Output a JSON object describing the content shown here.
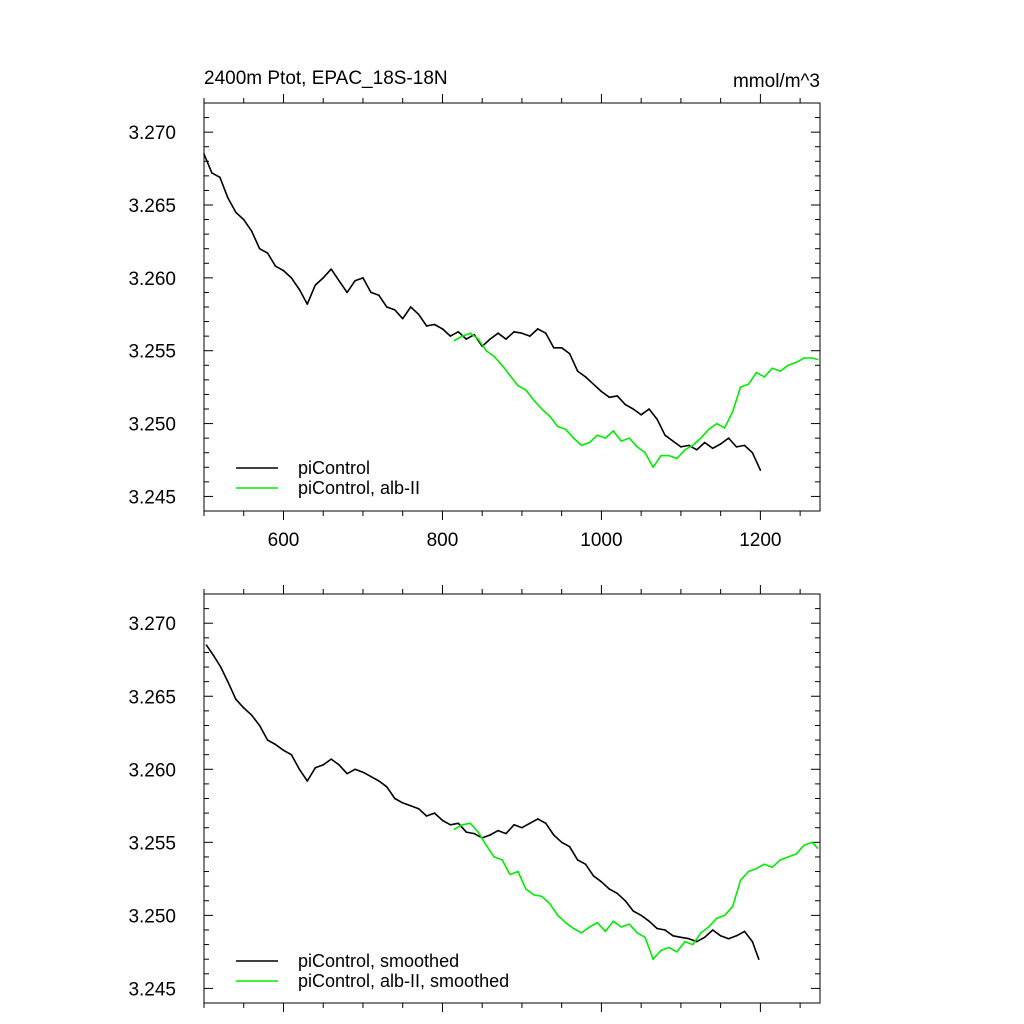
{
  "header": {
    "title": "2400m Ptot, EPAC_18S-18N",
    "units": "mmol/m^3"
  },
  "chart_data": [
    {
      "type": "line",
      "xlim": [
        500,
        1275
      ],
      "ylim": [
        3.244,
        3.272
      ],
      "xticks": [
        600,
        800,
        1000,
        1200
      ],
      "xtick_labels": [
        "600",
        "800",
        "1000",
        "1200"
      ],
      "yticks": [
        3.245,
        3.25,
        3.255,
        3.26,
        3.265,
        3.27
      ],
      "ytick_labels": [
        "3.245",
        "3.250",
        "3.255",
        "3.260",
        "3.265",
        "3.270"
      ],
      "legend_position": "bottom-left",
      "series": [
        {
          "name": "piControl",
          "color": "#000000",
          "x": [
            500,
            510,
            520,
            530,
            540,
            550,
            560,
            570,
            580,
            590,
            600,
            610,
            620,
            630,
            640,
            650,
            660,
            670,
            680,
            690,
            700,
            710,
            720,
            730,
            740,
            750,
            760,
            770,
            780,
            790,
            800,
            810,
            820,
            830,
            840,
            850,
            860,
            870,
            880,
            890,
            900,
            910,
            920,
            930,
            940,
            950,
            960,
            970,
            980,
            990,
            1000,
            1010,
            1020,
            1030,
            1040,
            1050,
            1060,
            1070,
            1080,
            1090,
            1100,
            1110,
            1120,
            1130,
            1140,
            1150,
            1160,
            1170,
            1180,
            1190,
            1200
          ],
          "y": [
            3.2685,
            3.2672,
            3.2669,
            3.2655,
            3.2645,
            3.264,
            3.2632,
            3.262,
            3.2617,
            3.2608,
            3.2605,
            3.26,
            3.2592,
            3.2582,
            3.2595,
            3.26,
            3.2606,
            3.2598,
            3.259,
            3.2598,
            3.26,
            3.259,
            3.2588,
            3.258,
            3.2578,
            3.2572,
            3.258,
            3.2575,
            3.2567,
            3.2568,
            3.2565,
            3.256,
            3.2563,
            3.2558,
            3.2561,
            3.2553,
            3.2558,
            3.2562,
            3.2558,
            3.2563,
            3.2562,
            3.256,
            3.2565,
            3.2562,
            3.2552,
            3.2552,
            3.2548,
            3.2536,
            3.2532,
            3.2527,
            3.2522,
            3.2518,
            3.2519,
            3.2513,
            3.251,
            3.2506,
            3.251,
            3.2503,
            3.2492,
            3.2488,
            3.2484,
            3.2485,
            3.2482,
            3.2487,
            3.2483,
            3.2486,
            3.249,
            3.2484,
            3.2485,
            3.248,
            3.2468
          ]
        },
        {
          "name": "piControl, alb-II",
          "color": "#00ee00",
          "x": [
            815,
            825,
            835,
            845,
            855,
            865,
            875,
            885,
            895,
            905,
            915,
            925,
            935,
            945,
            955,
            965,
            975,
            985,
            995,
            1005,
            1015,
            1025,
            1035,
            1045,
            1055,
            1065,
            1075,
            1085,
            1095,
            1105,
            1115,
            1125,
            1135,
            1145,
            1155,
            1165,
            1175,
            1185,
            1195,
            1205,
            1215,
            1225,
            1235,
            1245,
            1255,
            1265,
            1272
          ],
          "y": [
            3.2557,
            3.256,
            3.2562,
            3.2558,
            3.255,
            3.2546,
            3.254,
            3.2533,
            3.2526,
            3.2523,
            3.2516,
            3.251,
            3.2505,
            3.2498,
            3.2496,
            3.249,
            3.2485,
            3.2487,
            3.2492,
            3.249,
            3.2495,
            3.2488,
            3.249,
            3.2484,
            3.248,
            3.247,
            3.2478,
            3.2478,
            3.2476,
            3.2482,
            3.2485,
            3.249,
            3.2496,
            3.25,
            3.2497,
            3.2508,
            3.2525,
            3.2527,
            3.2535,
            3.2532,
            3.2538,
            3.2536,
            3.254,
            3.2542,
            3.2545,
            3.2545,
            3.2544
          ]
        }
      ]
    },
    {
      "type": "line",
      "xlim": [
        500,
        1275
      ],
      "ylim": [
        3.244,
        3.272
      ],
      "xticks": [
        600,
        800,
        1000,
        1200
      ],
      "yticks": [
        3.245,
        3.25,
        3.255,
        3.26,
        3.265,
        3.27
      ],
      "ytick_labels": [
        "3.245",
        "3.250",
        "3.255",
        "3.260",
        "3.265",
        "3.270"
      ],
      "legend_position": "bottom-left",
      "series": [
        {
          "name": "piControl, smoothed",
          "color": "#000000",
          "x": [
            503,
            512,
            521,
            530,
            540,
            550,
            560,
            570,
            580,
            590,
            600,
            610,
            620,
            630,
            640,
            650,
            660,
            670,
            680,
            690,
            700,
            710,
            720,
            730,
            740,
            750,
            760,
            770,
            780,
            790,
            800,
            810,
            820,
            830,
            840,
            850,
            860,
            870,
            880,
            890,
            900,
            910,
            920,
            930,
            940,
            950,
            960,
            970,
            980,
            990,
            1000,
            1010,
            1020,
            1030,
            1040,
            1050,
            1060,
            1070,
            1080,
            1090,
            1100,
            1110,
            1120,
            1130,
            1140,
            1150,
            1160,
            1170,
            1180,
            1190,
            1198
          ],
          "y": [
            3.2685,
            3.2678,
            3.267,
            3.266,
            3.2648,
            3.2642,
            3.2637,
            3.263,
            3.262,
            3.2617,
            3.2613,
            3.261,
            3.26,
            3.2592,
            3.2601,
            3.2603,
            3.2607,
            3.2603,
            3.2597,
            3.26,
            3.2598,
            3.2595,
            3.2592,
            3.2588,
            3.258,
            3.2577,
            3.2575,
            3.2573,
            3.2568,
            3.257,
            3.2565,
            3.2562,
            3.2563,
            3.2557,
            3.2556,
            3.2553,
            3.2555,
            3.2558,
            3.2556,
            3.2562,
            3.256,
            3.2563,
            3.2566,
            3.2563,
            3.2555,
            3.255,
            3.2547,
            3.2538,
            3.2535,
            3.2527,
            3.2523,
            3.2518,
            3.2515,
            3.251,
            3.2503,
            3.25,
            3.2496,
            3.2491,
            3.249,
            3.2486,
            3.2485,
            3.2484,
            3.2482,
            3.2485,
            3.249,
            3.2486,
            3.2484,
            3.2486,
            3.2489,
            3.2482,
            3.247
          ]
        },
        {
          "name": "piControl, alb-II, smoothed",
          "color": "#00ee00",
          "x": [
            815,
            825,
            835,
            845,
            855,
            865,
            875,
            885,
            895,
            905,
            915,
            925,
            935,
            945,
            955,
            965,
            975,
            985,
            995,
            1005,
            1015,
            1025,
            1035,
            1045,
            1055,
            1065,
            1075,
            1085,
            1095,
            1105,
            1115,
            1125,
            1135,
            1145,
            1155,
            1165,
            1175,
            1185,
            1195,
            1205,
            1215,
            1225,
            1235,
            1245,
            1255,
            1265,
            1272
          ],
          "y": [
            3.2559,
            3.2562,
            3.2563,
            3.2557,
            3.2548,
            3.254,
            3.2538,
            3.2528,
            3.253,
            3.2518,
            3.2514,
            3.2513,
            3.2508,
            3.25,
            3.2495,
            3.2491,
            3.2488,
            3.2492,
            3.2495,
            3.2489,
            3.2496,
            3.2492,
            3.2494,
            3.2488,
            3.2485,
            3.247,
            3.2476,
            3.2478,
            3.2475,
            3.2482,
            3.248,
            3.2488,
            3.2492,
            3.2498,
            3.25,
            3.2506,
            3.2524,
            3.253,
            3.2532,
            3.2535,
            3.2533,
            3.2538,
            3.254,
            3.2542,
            3.2548,
            3.255,
            3.2546
          ]
        }
      ]
    }
  ]
}
